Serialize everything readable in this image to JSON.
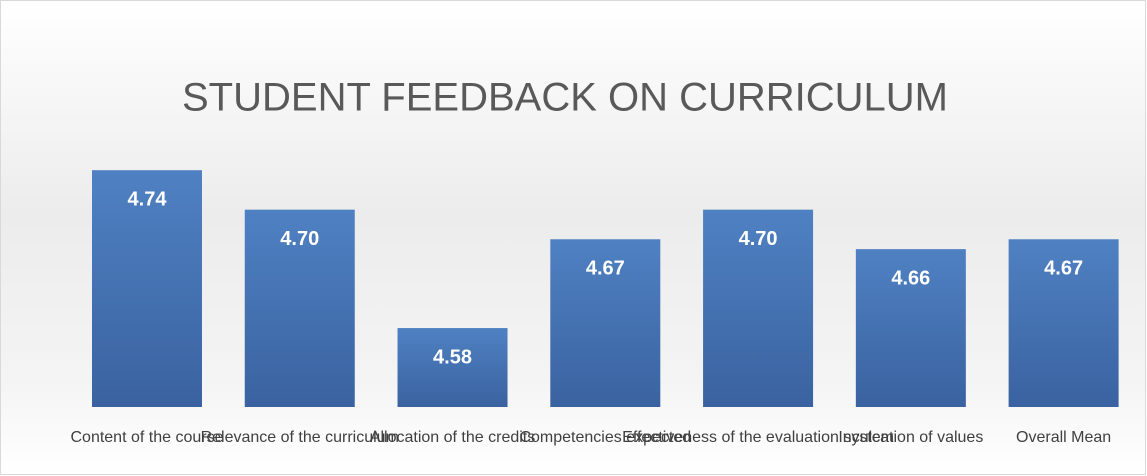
{
  "chart_data": {
    "type": "bar",
    "title": "STUDENT FEEDBACK ON CURRICULUM",
    "categories": [
      "Content of the course",
      "Relevance of the curriculum",
      "Allocation of the credits",
      "Competencies expected",
      "Effectiveness of the evaluation system",
      "Inculcation of values",
      "Overall Mean"
    ],
    "values": [
      4.74,
      4.7,
      4.58,
      4.67,
      4.7,
      4.66,
      4.67
    ],
    "value_labels": [
      "4.74",
      "4.70",
      "4.58",
      "4.67",
      "4.70",
      "4.66",
      "4.67"
    ],
    "color": "#4a76b2",
    "ylim": [
      4.5,
      4.8
    ]
  }
}
